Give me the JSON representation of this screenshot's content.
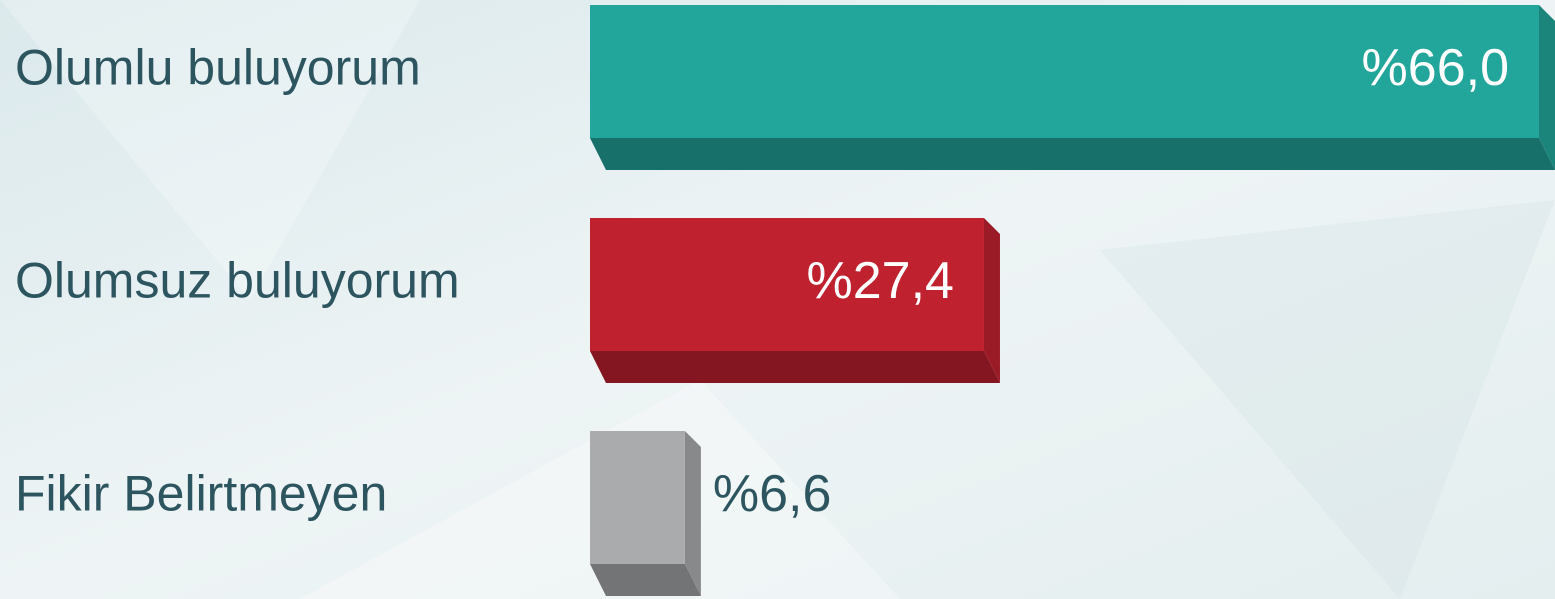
{
  "chart_data": {
    "type": "bar",
    "categories": [
      "Olumlu buluyorum",
      "Olumsuz buluyorum",
      "Fikir Belirtmeyen"
    ],
    "values": [
      66.0,
      27.4,
      6.6
    ],
    "value_labels": [
      "%66,0",
      "%27,4",
      "%6,6"
    ],
    "colors": [
      "#22a59a",
      "#c0212f",
      "#a9abac"
    ]
  }
}
